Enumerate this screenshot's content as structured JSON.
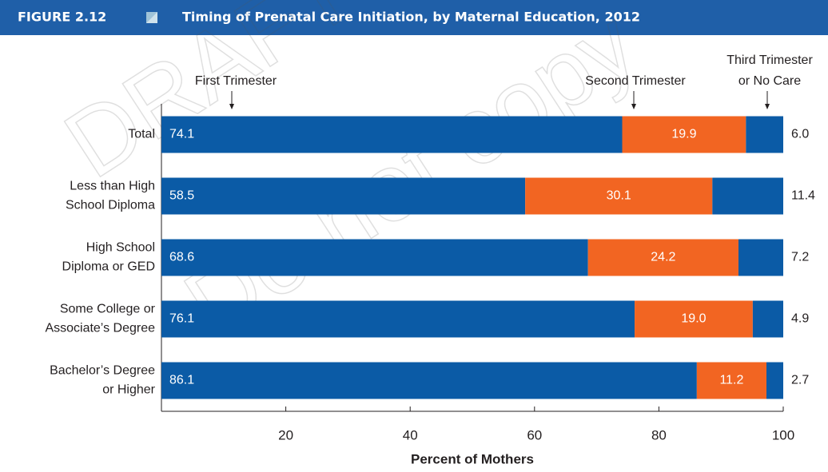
{
  "figure_label": "FIGURE 2.12",
  "watermark": [
    "DRAFT",
    "Do not copy"
  ],
  "chart_data": {
    "type": "stacked-barh",
    "title": "Timing of Prenatal Care Initiation, by Maternal Education, 2012",
    "xlabel": "Percent of Mothers",
    "categories": [
      "Total",
      "Less than High\nSchool Diploma",
      "High School\nDiploma or GED",
      "Some College or\nAssociate’s Degree",
      "Bachelor’s Degree\nor Higher"
    ],
    "series": [
      {
        "name": "First Trimester",
        "color": "#0b5ba6",
        "values": [
          74.1,
          58.5,
          68.6,
          76.1,
          86.1
        ],
        "value_labels": [
          "74.1",
          "58.5",
          "68.6",
          "76.1",
          "86.1"
        ]
      },
      {
        "name": "Second Trimester",
        "color": "#f26522",
        "values": [
          19.9,
          30.1,
          24.2,
          19.0,
          11.2
        ],
        "value_labels": [
          "19.9",
          "30.1",
          "24.2",
          "19.0",
          "11.2"
        ]
      },
      {
        "name": "Third Trimester\nor No Care",
        "color": "#0b5ba6",
        "values": [
          6.0,
          11.4,
          7.2,
          4.9,
          2.7
        ],
        "value_labels": [
          "6.0",
          "11.4",
          "7.2",
          "4.9",
          "2.7"
        ]
      }
    ],
    "xlim": [
      0,
      100
    ],
    "xticks": [
      20,
      40,
      60,
      80,
      100
    ]
  }
}
